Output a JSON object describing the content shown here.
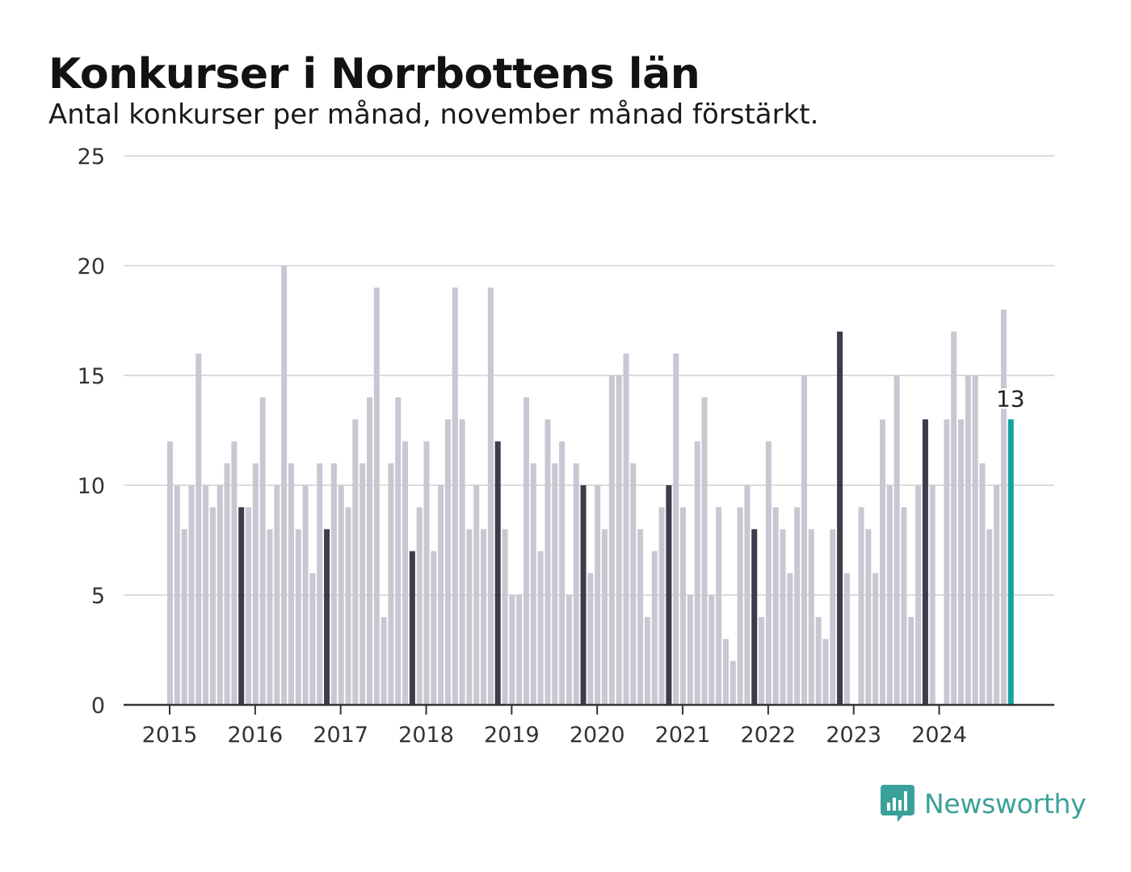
{
  "header": {
    "title": "Konkurser i Norrbottens län",
    "subtitle": "Antal konkurser per månad, november månad förstärkt."
  },
  "brand": {
    "name": "Newsworthy",
    "color": "#3aa19a"
  },
  "colors": {
    "regular": "#c8c7d2",
    "november": "#3d3c4b",
    "latest": "#12a49b",
    "grid": "#dcdcdc",
    "axis": "#333333"
  },
  "chart_data": {
    "type": "bar",
    "title": "Konkurser i Norrbottens län",
    "subtitle": "Antal konkurser per månad, november månad förstärkt.",
    "xlabel": "",
    "ylabel": "",
    "ylim": [
      0,
      25
    ],
    "yticks": [
      0,
      5,
      10,
      15,
      20,
      25
    ],
    "xticks": [
      "2015",
      "2016",
      "2017",
      "2018",
      "2019",
      "2020",
      "2021",
      "2022",
      "2023",
      "2024"
    ],
    "grid": true,
    "start": "2015-01",
    "values": [
      12,
      10,
      8,
      10,
      16,
      10,
      9,
      10,
      11,
      12,
      9,
      9,
      11,
      14,
      8,
      10,
      20,
      11,
      8,
      10,
      6,
      11,
      8,
      11,
      10,
      9,
      13,
      11,
      14,
      19,
      4,
      11,
      14,
      12,
      7,
      9,
      12,
      7,
      10,
      13,
      19,
      13,
      8,
      10,
      8,
      19,
      12,
      8,
      5,
      5,
      14,
      11,
      7,
      13,
      11,
      12,
      5,
      11,
      10,
      6,
      10,
      8,
      15,
      15,
      16,
      11,
      8,
      4,
      7,
      9,
      10,
      16,
      9,
      5,
      12,
      14,
      5,
      9,
      3,
      2,
      9,
      10,
      8,
      4,
      12,
      9,
      8,
      6,
      9,
      15,
      8,
      4,
      3,
      8,
      17,
      6,
      0,
      9,
      8,
      6,
      13,
      10,
      15,
      9,
      4,
      10,
      13,
      10,
      0,
      13,
      17,
      13,
      15,
      15,
      11,
      8,
      10,
      18,
      13
    ],
    "highlight": "November",
    "annotation": {
      "label": "13",
      "value": 13
    }
  }
}
